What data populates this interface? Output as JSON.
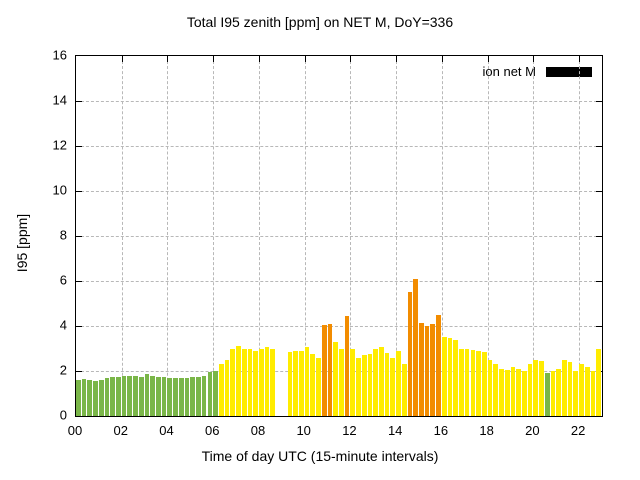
{
  "header": {
    "title": "Total I95 zenith [ppm] on NET M, DoY=336"
  },
  "legend": {
    "label": "ion net M",
    "swatch_color": "#000000"
  },
  "chart_data": {
    "type": "bar",
    "title": "Total I95 zenith [ppm] on NET M, DoY=336",
    "xlabel": "Time of day UTC (15-minute intervals)",
    "ylabel": "I95 [ppm]",
    "xlim": [
      0,
      23
    ],
    "ylim": [
      0,
      16
    ],
    "grid": true,
    "legend_position": "top-right",
    "x_tick_labels": [
      "00",
      "02",
      "04",
      "06",
      "08",
      "10",
      "12",
      "14",
      "16",
      "18",
      "20",
      "22"
    ],
    "x_tick_hours": [
      0,
      2,
      4,
      6,
      8,
      10,
      12,
      14,
      16,
      18,
      20,
      22
    ],
    "y_ticks": [
      0,
      2,
      4,
      6,
      8,
      10,
      12,
      14,
      16
    ],
    "start_hour": 0,
    "interval_hours": 0.25,
    "bar_color_map": {
      "g": "#7ab648",
      "y": "#ffec00",
      "o": "#f28c00"
    },
    "values": [
      1.6,
      1.65,
      1.6,
      1.55,
      1.6,
      1.7,
      1.75,
      1.75,
      1.8,
      1.8,
      1.8,
      1.75,
      1.85,
      1.8,
      1.75,
      1.75,
      1.7,
      1.7,
      1.7,
      1.7,
      1.75,
      1.75,
      1.8,
      1.95,
      2.0,
      2.3,
      2.5,
      3.0,
      3.1,
      3.0,
      3.0,
      2.9,
      3.0,
      3.05,
      3.0,
      null,
      null,
      2.85,
      2.9,
      2.9,
      3.05,
      2.75,
      2.6,
      4.05,
      4.1,
      3.3,
      3.0,
      4.45,
      3.0,
      2.6,
      2.7,
      2.75,
      3.0,
      3.05,
      2.8,
      2.6,
      2.9,
      2.3,
      5.5,
      6.1,
      4.15,
      4.0,
      4.1,
      4.5,
      3.5,
      3.45,
      3.4,
      3.0,
      3.0,
      2.95,
      2.9,
      2.85,
      2.5,
      2.3,
      2.1,
      2.05,
      2.2,
      2.1,
      2.0,
      2.3,
      2.5,
      2.45,
      1.9,
      2.0,
      2.1,
      2.5,
      2.4,
      2.0,
      2.3,
      2.2,
      2.0,
      3.0
    ],
    "bar_colors": [
      "g",
      "g",
      "g",
      "g",
      "g",
      "g",
      "g",
      "g",
      "g",
      "g",
      "g",
      "g",
      "g",
      "g",
      "g",
      "g",
      "g",
      "g",
      "g",
      "g",
      "g",
      "g",
      "g",
      "g",
      "g",
      "y",
      "y",
      "y",
      "y",
      "y",
      "y",
      "y",
      "y",
      "y",
      "y",
      null,
      null,
      "y",
      "y",
      "y",
      "y",
      "y",
      "y",
      "o",
      "o",
      "y",
      "y",
      "o",
      "y",
      "y",
      "y",
      "y",
      "y",
      "y",
      "y",
      "y",
      "y",
      "y",
      "o",
      "o",
      "o",
      "o",
      "o",
      "o",
      "y",
      "y",
      "y",
      "y",
      "y",
      "y",
      "y",
      "y",
      "y",
      "y",
      "y",
      "y",
      "y",
      "y",
      "y",
      "y",
      "y",
      "y",
      "g",
      "y",
      "y",
      "y",
      "y",
      "y",
      "y",
      "y",
      "y",
      "y"
    ]
  }
}
